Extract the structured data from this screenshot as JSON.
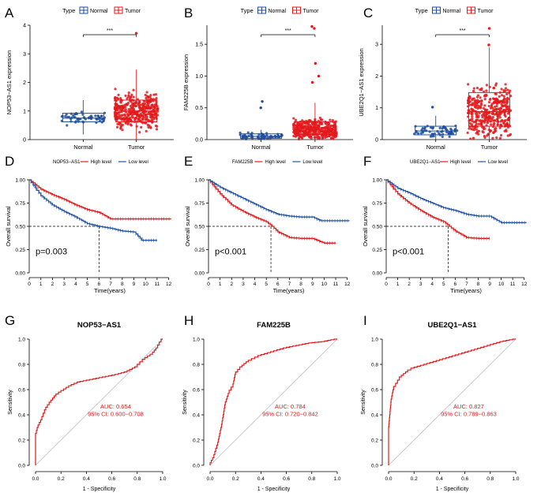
{
  "colors": {
    "normal": "#1f4e9c",
    "tumor": "#e31a1c",
    "high": "#e31a1c",
    "low": "#2255a4",
    "roc": "#e31a1c",
    "axis": "#000000",
    "diagonal": "#bdbdbd"
  },
  "panels": {
    "A": {
      "letter": "A"
    },
    "B": {
      "letter": "B"
    },
    "C": {
      "letter": "C"
    },
    "D": {
      "letter": "D"
    },
    "E": {
      "letter": "E"
    },
    "F": {
      "letter": "F"
    },
    "G": {
      "letter": "G"
    },
    "H": {
      "letter": "H"
    },
    "I": {
      "letter": "I"
    }
  },
  "chart_data": [
    {
      "panel": "A",
      "type": "box",
      "legend_title": "Type",
      "legend": [
        "Normal",
        "Tumor"
      ],
      "ylabel": "NOP53−AS1 expression",
      "categories": [
        "Normal",
        "Tumor"
      ],
      "ylim": [
        0,
        4
      ],
      "yticks": [
        0,
        1,
        2,
        3,
        4
      ],
      "significance": "***",
      "boxes": [
        {
          "group": "Normal",
          "q1": 0.62,
          "median": 0.75,
          "q3": 0.92,
          "whisker_low": 0.18,
          "whisker_high": 1.38
        },
        {
          "group": "Tumor",
          "q1": 0.62,
          "median": 1.0,
          "q3": 1.38,
          "whisker_low": 0.0,
          "whisker_high": 2.45
        }
      ],
      "outliers": [
        {
          "group": "Tumor",
          "value": 3.72
        }
      ]
    },
    {
      "panel": "B",
      "type": "box",
      "legend_title": "Type",
      "legend": [
        "Normal",
        "Tumor"
      ],
      "ylabel": "FAM225B expression",
      "categories": [
        "Normal",
        "Tumor"
      ],
      "ylim": [
        0,
        1.8
      ],
      "yticks": [
        0.0,
        0.5,
        1.0,
        1.5
      ],
      "significance": "***",
      "boxes": [
        {
          "group": "Normal",
          "q1": 0.02,
          "median": 0.05,
          "q3": 0.09,
          "whisker_low": 0.0,
          "whisker_high": 0.15
        },
        {
          "group": "Tumor",
          "q1": 0.08,
          "median": 0.15,
          "q3": 0.28,
          "whisker_low": 0.0,
          "whisker_high": 0.58
        }
      ],
      "outliers": [
        {
          "group": "Normal",
          "value": 0.6
        },
        {
          "group": "Normal",
          "value": 0.5
        },
        {
          "group": "Tumor",
          "value": 1.78
        },
        {
          "group": "Tumor",
          "value": 1.75
        },
        {
          "group": "Tumor",
          "value": 1.2
        },
        {
          "group": "Tumor",
          "value": 1.0
        },
        {
          "group": "Tumor",
          "value": 0.9
        }
      ]
    },
    {
      "panel": "C",
      "type": "box",
      "legend_title": "Type",
      "legend": [
        "Normal",
        "Tumor"
      ],
      "ylabel": "UBE2Q1−AS1 expression",
      "categories": [
        "Normal",
        "Tumor"
      ],
      "ylim": [
        0,
        3.6
      ],
      "yticks": [
        0,
        1,
        2,
        3
      ],
      "significance": "***",
      "boxes": [
        {
          "group": "Normal",
          "q1": 0.15,
          "median": 0.27,
          "q3": 0.42,
          "whisker_low": 0.0,
          "whisker_high": 0.75
        },
        {
          "group": "Tumor",
          "q1": 0.42,
          "median": 0.88,
          "q3": 1.48,
          "whisker_low": 0.0,
          "whisker_high": 2.9
        }
      ],
      "outliers": [
        {
          "group": "Normal",
          "value": 1.02
        },
        {
          "group": "Tumor",
          "value": 3.5
        },
        {
          "group": "Tumor",
          "value": 2.98
        }
      ]
    },
    {
      "panel": "D",
      "type": "line",
      "kind": "survival",
      "legend_title": "NOP53−AS1",
      "legend": [
        "High level",
        "Low level"
      ],
      "xlabel": "Time(years)",
      "ylabel": "Overall survival",
      "xlim": [
        0,
        12.5
      ],
      "ylim": [
        0,
        1
      ],
      "xticks": [
        0,
        1,
        2,
        3,
        4,
        5,
        6,
        7,
        8,
        9,
        10,
        11,
        12
      ],
      "yticks": [
        0.0,
        0.25,
        0.5,
        0.75,
        1.0
      ],
      "pvalue": "p=0.003",
      "median_survival_years": 6.0,
      "series": [
        {
          "name": "High level",
          "x": [
            0,
            1,
            2,
            3,
            4,
            5,
            6,
            7,
            8,
            10,
            12.2
          ],
          "y": [
            1.0,
            0.9,
            0.84,
            0.79,
            0.73,
            0.68,
            0.65,
            0.58,
            0.58,
            0.58,
            0.58
          ]
        },
        {
          "name": "Low level",
          "x": [
            0,
            1,
            2,
            3,
            4,
            5,
            6,
            7,
            8,
            9,
            9.7,
            10,
            11
          ],
          "y": [
            1.0,
            0.83,
            0.73,
            0.66,
            0.6,
            0.53,
            0.5,
            0.48,
            0.45,
            0.44,
            0.35,
            0.35,
            0.35
          ]
        }
      ]
    },
    {
      "panel": "E",
      "type": "line",
      "kind": "survival",
      "legend_title": "FAM225B",
      "legend": [
        "High level",
        "Low level"
      ],
      "xlabel": "Time(years)",
      "ylabel": "Overall survival",
      "xlim": [
        0,
        12.5
      ],
      "ylim": [
        0,
        1
      ],
      "xticks": [
        0,
        1,
        2,
        3,
        4,
        5,
        6,
        7,
        8,
        9,
        10,
        11,
        12
      ],
      "yticks": [
        0.0,
        0.25,
        0.5,
        0.75,
        1.0
      ],
      "pvalue": "p<0.001",
      "median_survival_years": 5.4,
      "series": [
        {
          "name": "High level",
          "x": [
            0,
            1,
            2,
            3,
            4,
            5,
            5.5,
            6,
            7,
            8,
            9,
            10,
            11
          ],
          "y": [
            1.0,
            0.85,
            0.73,
            0.66,
            0.6,
            0.55,
            0.5,
            0.44,
            0.38,
            0.37,
            0.37,
            0.32,
            0.32
          ]
        },
        {
          "name": "Low level",
          "x": [
            0,
            1,
            2,
            3,
            4,
            5,
            6,
            7,
            8,
            9,
            9.7,
            10,
            12.2
          ],
          "y": [
            1.0,
            0.92,
            0.86,
            0.8,
            0.74,
            0.68,
            0.63,
            0.61,
            0.6,
            0.6,
            0.56,
            0.56,
            0.56
          ]
        }
      ]
    },
    {
      "panel": "F",
      "type": "line",
      "kind": "survival",
      "legend_title": "UBE2Q1−AS1",
      "legend": [
        "High level",
        "Low level"
      ],
      "xlabel": "Time(years)",
      "ylabel": "Overall survival",
      "xlim": [
        0,
        12.5
      ],
      "ylim": [
        0,
        1
      ],
      "xticks": [
        0,
        1,
        2,
        3,
        4,
        5,
        6,
        7,
        8,
        9,
        10,
        11,
        12
      ],
      "yticks": [
        0.0,
        0.25,
        0.5,
        0.75,
        1.0
      ],
      "pvalue": "p<0.001",
      "median_survival_years": 5.4,
      "series": [
        {
          "name": "High level",
          "x": [
            0,
            1,
            2,
            3,
            4,
            5,
            5.5,
            6,
            7,
            8,
            9
          ],
          "y": [
            1.0,
            0.85,
            0.75,
            0.67,
            0.6,
            0.55,
            0.5,
            0.45,
            0.38,
            0.37,
            0.37
          ]
        },
        {
          "name": "Low level",
          "x": [
            0,
            1,
            2,
            3,
            4,
            5,
            6,
            7,
            8,
            9,
            10,
            12.2
          ],
          "y": [
            1.0,
            0.91,
            0.86,
            0.8,
            0.75,
            0.7,
            0.67,
            0.63,
            0.61,
            0.61,
            0.54,
            0.54
          ]
        }
      ]
    },
    {
      "panel": "G",
      "type": "line",
      "kind": "roc",
      "title": "NOP53−AS1",
      "xlabel": "1 - Specificity",
      "ylabel": "Sensitivity",
      "xlim": [
        0,
        1
      ],
      "ylim": [
        0,
        1
      ],
      "xticks": [
        0.0,
        0.2,
        0.4,
        0.6,
        0.8,
        1.0
      ],
      "yticks": [
        0.0,
        0.2,
        0.4,
        0.6,
        0.8,
        1.0
      ],
      "auc_text": "AUC: 0.654",
      "ci_text": "95% CI: 0.600−0.708",
      "series": [
        {
          "x": [
            0,
            0,
            0.02,
            0.05,
            0.08,
            0.12,
            0.16,
            0.2,
            0.28,
            0.35,
            0.45,
            0.55,
            0.65,
            0.72,
            0.8,
            0.86,
            0.92,
            0.96,
            1.0
          ],
          "y": [
            0,
            0.23,
            0.3,
            0.36,
            0.44,
            0.5,
            0.55,
            0.58,
            0.63,
            0.66,
            0.68,
            0.7,
            0.72,
            0.74,
            0.78,
            0.84,
            0.88,
            0.93,
            1.0
          ]
        }
      ]
    },
    {
      "panel": "H",
      "type": "line",
      "kind": "roc",
      "title": "FAM225B",
      "xlabel": "1 - Specificity",
      "ylabel": "Sensitivity",
      "xlim": [
        0,
        1
      ],
      "ylim": [
        0,
        1
      ],
      "xticks": [
        0.0,
        0.2,
        0.4,
        0.6,
        0.8,
        1.0
      ],
      "yticks": [
        0.0,
        0.2,
        0.4,
        0.6,
        0.8,
        1.0
      ],
      "auc_text": "AUC: 0.784",
      "ci_text": "95% CI: 0.720−0.842",
      "series": [
        {
          "x": [
            0,
            0.03,
            0.06,
            0.09,
            0.12,
            0.15,
            0.18,
            0.2,
            0.25,
            0.3,
            0.4,
            0.5,
            0.6,
            0.7,
            0.8,
            0.9,
            1.0
          ],
          "y": [
            0,
            0.06,
            0.16,
            0.3,
            0.48,
            0.57,
            0.62,
            0.72,
            0.78,
            0.82,
            0.87,
            0.9,
            0.93,
            0.95,
            0.97,
            0.98,
            1.0
          ]
        }
      ]
    },
    {
      "panel": "I",
      "type": "line",
      "kind": "roc",
      "title": "UBE2Q1−AS1",
      "xlabel": "1 - Specificity",
      "ylabel": "Sensitivity",
      "xlim": [
        0,
        1
      ],
      "ylim": [
        0,
        1
      ],
      "xticks": [
        0.0,
        0.2,
        0.4,
        0.6,
        0.8,
        1.0
      ],
      "yticks": [
        0.0,
        0.2,
        0.4,
        0.6,
        0.8,
        1.0
      ],
      "auc_text": "AUC: 0.827",
      "ci_text": "95% CI: 0.789−0.863",
      "series": [
        {
          "x": [
            0,
            0,
            0.02,
            0.04,
            0.07,
            0.1,
            0.15,
            0.2,
            0.3,
            0.4,
            0.5,
            0.6,
            0.7,
            0.8,
            0.9,
            1.0
          ],
          "y": [
            0,
            0.28,
            0.5,
            0.6,
            0.65,
            0.7,
            0.74,
            0.77,
            0.8,
            0.83,
            0.86,
            0.89,
            0.92,
            0.95,
            0.98,
            1.0
          ]
        }
      ]
    }
  ]
}
